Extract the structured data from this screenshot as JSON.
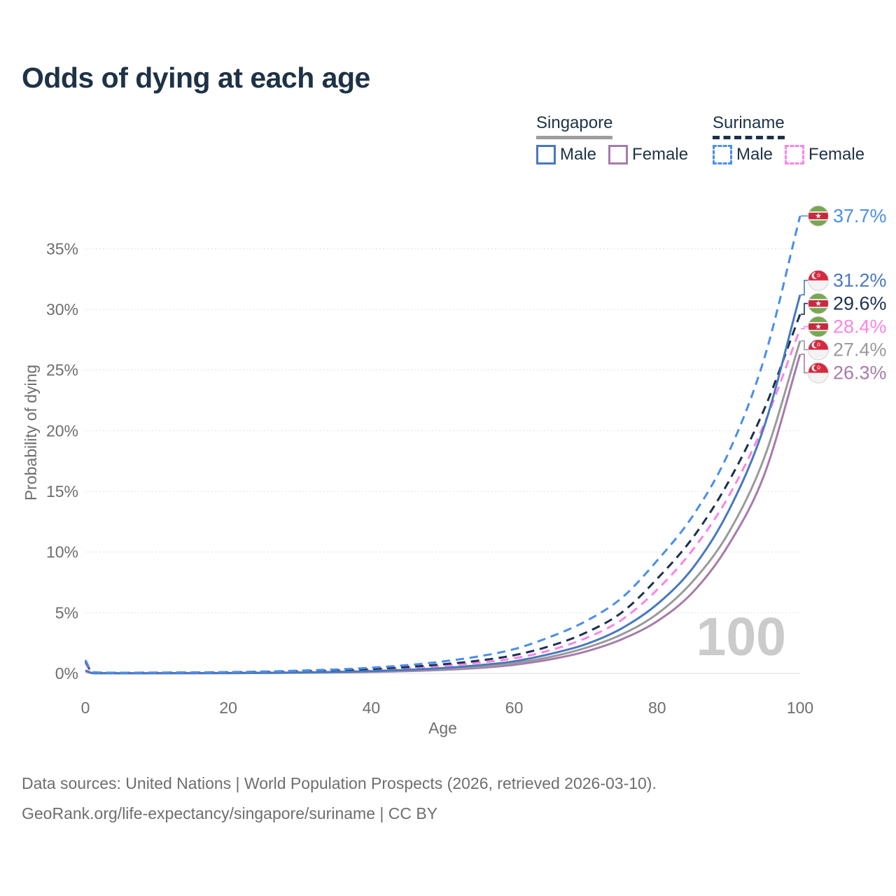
{
  "title": "Odds of dying at each age",
  "legend": {
    "groups": [
      {
        "label": "Singapore",
        "line_style": "solid",
        "underline_color": "#9e9e9e",
        "items": [
          {
            "label": "Male",
            "color": "#4879bd"
          },
          {
            "label": "Female",
            "color": "#a77bab"
          }
        ]
      },
      {
        "label": "Suriname",
        "line_style": "dashed",
        "underline_color": "#1c3150",
        "items": [
          {
            "label": "Male",
            "color": "#4a8ee9"
          },
          {
            "label": "Female",
            "color": "#f985e6"
          }
        ]
      }
    ]
  },
  "chart_data": {
    "type": "line",
    "title": "Odds of dying at each age",
    "xlabel": "Age",
    "ylabel": "Probability of dying",
    "xlim": [
      0,
      100
    ],
    "ylim": [
      0,
      38
    ],
    "grid": true,
    "legend_position": "top-right",
    "watermark": "100",
    "x_ticks": [
      0,
      20,
      40,
      60,
      80,
      100
    ],
    "y_ticks": [
      {
        "value": 0,
        "label": "0%"
      },
      {
        "value": 5,
        "label": "5%"
      },
      {
        "value": 10,
        "label": "10%"
      },
      {
        "value": 15,
        "label": "15%"
      },
      {
        "value": 20,
        "label": "20%"
      },
      {
        "value": 25,
        "label": "25%"
      },
      {
        "value": 30,
        "label": "30%"
      },
      {
        "value": 35,
        "label": "35%"
      }
    ],
    "ages": [
      0,
      1,
      2,
      5,
      10,
      20,
      30,
      40,
      50,
      55,
      60,
      65,
      70,
      75,
      80,
      85,
      90,
      95,
      100
    ],
    "series": [
      {
        "name": "Suriname Male",
        "country": "Suriname",
        "sex": "Male",
        "color": "#4a8ee9",
        "line_style": "dashed",
        "end_value": 37.7,
        "end_label": "37.7%",
        "values": [
          1.1,
          0.1,
          0.07,
          0.06,
          0.07,
          0.11,
          0.23,
          0.47,
          0.98,
          1.4,
          2.0,
          3.0,
          4.3,
          6.2,
          9.3,
          13.0,
          18.2,
          26.0,
          37.7
        ]
      },
      {
        "name": "Singapore Male",
        "country": "Singapore",
        "sex": "Male",
        "color": "#4879bd",
        "line_style": "solid",
        "end_value": 31.2,
        "end_label": "31.2%",
        "values": [
          0.25,
          0.03,
          0.015,
          0.012,
          0.015,
          0.035,
          0.08,
          0.19,
          0.44,
          0.67,
          1.0,
          1.6,
          2.4,
          3.7,
          5.7,
          8.7,
          13.4,
          20.4,
          31.2
        ]
      },
      {
        "name": "Suriname Both sexes",
        "country": "Suriname",
        "sex": "Both",
        "color": "#1c3150",
        "line_style": "dashed",
        "end_value": 29.6,
        "end_label": "29.6%",
        "values": [
          1.0,
          0.09,
          0.06,
          0.05,
          0.06,
          0.09,
          0.18,
          0.36,
          0.75,
          1.05,
          1.5,
          2.25,
          3.35,
          5.0,
          7.8,
          11.2,
          15.8,
          21.8,
          29.6
        ]
      },
      {
        "name": "Suriname Female",
        "country": "Suriname",
        "sex": "Female",
        "color": "#f985e6",
        "line_style": "dashed",
        "end_value": 28.4,
        "end_label": "28.4%",
        "values": [
          0.85,
          0.08,
          0.05,
          0.04,
          0.05,
          0.08,
          0.15,
          0.3,
          0.62,
          0.88,
          1.25,
          1.9,
          2.9,
          4.4,
          6.9,
          10.2,
          14.6,
          20.6,
          28.4
        ]
      },
      {
        "name": "Singapore Both sexes",
        "country": "Singapore",
        "sex": "Both",
        "color": "#9a9a9a",
        "line_style": "solid",
        "end_value": 27.4,
        "end_label": "27.4%",
        "values": [
          0.22,
          0.025,
          0.012,
          0.01,
          0.012,
          0.027,
          0.065,
          0.15,
          0.36,
          0.55,
          0.85,
          1.35,
          2.1,
          3.2,
          4.9,
          7.6,
          11.6,
          17.8,
          27.4
        ]
      },
      {
        "name": "Singapore Female",
        "country": "Singapore",
        "sex": "Female",
        "color": "#a77bab",
        "line_style": "solid",
        "end_value": 26.3,
        "end_label": "26.3%",
        "values": [
          0.18,
          0.02,
          0.01,
          0.008,
          0.01,
          0.02,
          0.05,
          0.12,
          0.29,
          0.45,
          0.71,
          1.15,
          1.8,
          2.8,
          4.3,
          6.7,
          10.6,
          16.4,
          26.3
        ]
      }
    ]
  },
  "footer": {
    "line1": "Data sources: United Nations | World Population Prospects (2026, retrieved 2026-03-10).",
    "line2": "GeoRank.org/life-expectancy/singapore/suriname | CC BY"
  }
}
